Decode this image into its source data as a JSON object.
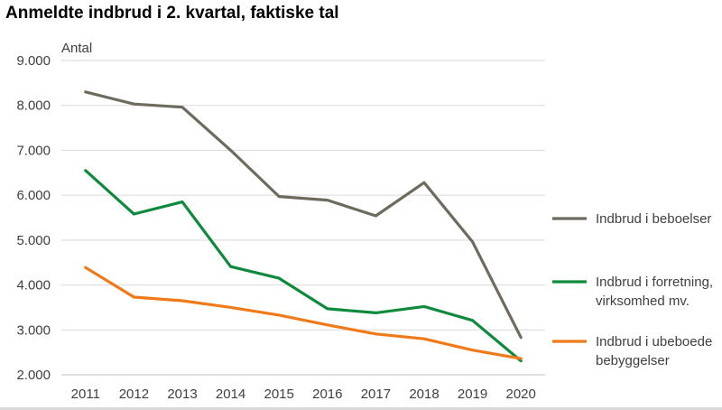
{
  "chart_data": {
    "type": "line",
    "title": "Anmeldte indbrud i 2. kvartal, faktiske tal",
    "ylabel": "Antal",
    "xlabel": "",
    "categories": [
      "2011",
      "2012",
      "2013",
      "2014",
      "2015",
      "2016",
      "2017",
      "2018",
      "2019",
      "2020"
    ],
    "ylim": [
      2000,
      9000
    ],
    "y_ticks": [
      2000,
      3000,
      4000,
      5000,
      6000,
      7000,
      8000,
      9000
    ],
    "y_tick_labels": [
      "2.000",
      "3.000",
      "4.000",
      "5.000",
      "6.000",
      "7.000",
      "8.000",
      "9.000"
    ],
    "grid": true,
    "legend_position": "right",
    "series": [
      {
        "name": "Indbrud i beboelser",
        "name_lines": [
          "Indbrud i beboelser"
        ],
        "color": "#6e6b5e",
        "values": [
          8300,
          8030,
          7960,
          7000,
          5970,
          5890,
          5540,
          6280,
          4960,
          2830
        ]
      },
      {
        "name": "Indbrud i forretning, virksomhed mv.",
        "name_lines": [
          "Indbrud i forretning,",
          "virksomhed mv."
        ],
        "color": "#0e8a3c",
        "values": [
          6550,
          5580,
          5850,
          4410,
          4150,
          3470,
          3380,
          3520,
          3210,
          2310
        ]
      },
      {
        "name": "Indbrud i ubeboede bebyggelser",
        "name_lines": [
          "Indbrud i ubeboede",
          "bebyggelser"
        ],
        "color": "#f07a19",
        "values": [
          4390,
          3730,
          3650,
          3500,
          3330,
          3110,
          2910,
          2800,
          2550,
          2360
        ]
      }
    ]
  }
}
